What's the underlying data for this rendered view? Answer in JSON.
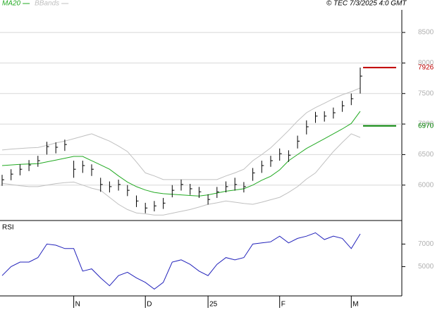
{
  "chart_data": [
    {
      "type": "ohlc",
      "source": "© TEC 7/3/2025 4:0 GMT",
      "categories": [
        null,
        null,
        null,
        null,
        null,
        null,
        null,
        null,
        "N",
        null,
        null,
        null,
        null,
        null,
        null,
        null,
        "D",
        null,
        null,
        null,
        null,
        null,
        null,
        "25",
        null,
        null,
        null,
        null,
        null,
        null,
        null,
        "F",
        null,
        null,
        null,
        null,
        null,
        null,
        null,
        "M",
        null
      ],
      "high": [
        6168,
        6260,
        6340,
        6410,
        6480,
        6710,
        6700,
        6745,
        6400,
        6400,
        6340,
        6120,
        6060,
        6090,
        6000,
        5830,
        5710,
        5740,
        5790,
        6000,
        6090,
        6020,
        5970,
        5850,
        5970,
        6060,
        6120,
        6050,
        6280,
        6400,
        6480,
        6600,
        6570,
        6810,
        7060,
        7200,
        7210,
        7270,
        7380,
        7500,
        7926
      ],
      "low": [
        5988,
        6080,
        6160,
        6230,
        6300,
        6500,
        6520,
        6560,
        6120,
        6200,
        6150,
        5890,
        5880,
        5910,
        5820,
        5640,
        5540,
        5570,
        5610,
        5800,
        5910,
        5840,
        5790,
        5680,
        5790,
        5880,
        5910,
        5880,
        6070,
        6200,
        6300,
        6400,
        6380,
        6600,
        6830,
        7020,
        7040,
        7090,
        7200,
        7310,
        7500
      ],
      "close": [
        6088,
        6180,
        6260,
        6330,
        6400,
        6630,
        6620,
        6665,
        6260,
        6320,
        6260,
        6010,
        5975,
        6010,
        5915,
        5740,
        5625,
        5660,
        5705,
        5915,
        6010,
        5940,
        5890,
        5765,
        5890,
        5975,
        6010,
        5975,
        6200,
        6320,
        6400,
        6515,
        6490,
        6720,
        6955,
        7130,
        7130,
        7185,
        7300,
        7415,
        7785
      ],
      "color": "#000000",
      "series": [
        {
          "name": "MA20",
          "color": "#22aa22",
          "values": [
            6320,
            6330,
            6340,
            6345,
            6350,
            6380,
            6410,
            6440,
            6470,
            6470,
            6400,
            6330,
            6260,
            6150,
            6050,
            5975,
            5920,
            5880,
            5860,
            5850,
            5840,
            5830,
            5820,
            5840,
            5870,
            5900,
            5920,
            5940,
            6000,
            6080,
            6145,
            6250,
            6400,
            6500,
            6600,
            6680,
            6760,
            6840,
            6920,
            7010,
            7210
          ]
        },
        {
          "name": "BBands",
          "color": "#c0c0c0",
          "upper": [
            6575,
            6590,
            6600,
            6610,
            6615,
            6650,
            6690,
            6720,
            6760,
            6800,
            6840,
            6780,
            6720,
            6640,
            6550,
            6380,
            6200,
            6150,
            6090,
            6090,
            6090,
            6090,
            6090,
            6090,
            6090,
            6150,
            6200,
            6260,
            6400,
            6500,
            6610,
            6750,
            6895,
            7050,
            7185,
            7270,
            7340,
            7415,
            7480,
            7530,
            7590
          ],
          "lower": [
            6030,
            6010,
            5990,
            5975,
            5975,
            6000,
            6025,
            6040,
            6050,
            6000,
            5950,
            5915,
            5800,
            5685,
            5600,
            5545,
            5530,
            5510,
            5510,
            5540,
            5570,
            5600,
            5640,
            5685,
            5710,
            5740,
            5720,
            5700,
            5685,
            5720,
            5760,
            5800,
            5880,
            5975,
            6100,
            6200,
            6375,
            6550,
            6700,
            6840,
            6780
          ]
        }
      ],
      "levels": [
        {
          "value": 7926,
          "color": "#c00000"
        },
        {
          "value": 6970,
          "color": "#008000"
        }
      ],
      "ylim": [
        5420,
        8870
      ],
      "yticks": [
        6000,
        6500,
        7000,
        7500,
        8000,
        8500
      ],
      "grid": true
    },
    {
      "type": "line",
      "title": "RSI",
      "values": [
        42,
        50,
        54,
        54,
        58,
        70,
        69,
        66,
        66,
        46,
        48,
        40,
        33,
        42,
        45,
        40,
        36,
        30,
        36,
        54,
        56,
        52,
        46,
        42,
        52,
        58,
        56,
        58,
        70,
        71,
        72,
        77,
        71,
        75,
        77,
        80,
        74,
        77,
        75,
        66,
        79
      ],
      "color": "#2222bb",
      "ylim": [
        24,
        89
      ],
      "yticks": [
        {
          "value": 50,
          "label": "5000"
        },
        {
          "value": 70,
          "label": "7000"
        }
      ],
      "grid": true
    }
  ]
}
